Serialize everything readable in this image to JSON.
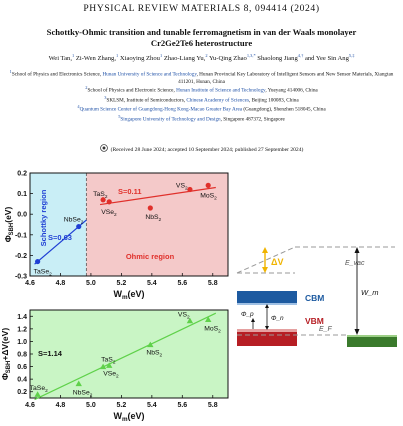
{
  "header": "PHYSICAL REVIEW MATERIALS 8, 094414 (2024)",
  "title_line1": "Schottky-Ohmic transition and tunable ferromagnetism in van der Waals monolayer",
  "title_line2": "Cr2Ge2Te6 heterostructure",
  "authors": [
    {
      "name": "Wei Tan,",
      "sup": "1"
    },
    {
      "name": "Zi-Wen Zhang,",
      "sup": "1"
    },
    {
      "name": "Xiaoying Zhou",
      "sup": "1"
    },
    {
      "name": "Zhao-Liang Yu,",
      "sup": "2"
    },
    {
      "name": "Yu-Qing Zhao",
      "sup": "1,3,*"
    },
    {
      "name": "Shaolong Jiang",
      "sup": "4,†"
    },
    {
      "name": "and Yee Sin Ang",
      "sup": "5,‡"
    }
  ],
  "affiliations": [
    {
      "num": "1",
      "pre": "School of Physics and Electronics Science, ",
      "link": "Hunan University of Science and Technology",
      "post": ", Hunan Provincial Key Laboratory of Intelligent Sensors and New Sensor Materials, Xiangtan 411201, Hunan, China"
    },
    {
      "num": "2",
      "pre": "School of Physics and Electronic Science, ",
      "link": "Hunan Institute of Science and Technology",
      "post": ", Yueyang 414006, China"
    },
    {
      "num": "3",
      "pre": "SKLSM, Institute of Semiconductors, ",
      "link": "Chinese Academy of Sciences",
      "post": ", Beijing 100083, China"
    },
    {
      "num": "4",
      "pre": "",
      "link": "Quantum Science Center of Guangdong-Hong Kong-Macao Greater Bay Area",
      "post": " (Guangdong), Shenzhen 518045, China"
    },
    {
      "num": "5",
      "pre": "",
      "link": "Singapore University of Technology and Design",
      "post": ", Singapore 487372, Singapore"
    }
  ],
  "received": "(Received 28 June 2024; accepted 10 September 2024; published 27 September 2024)",
  "chart_data": [
    {
      "type": "scatter",
      "xlabel": "W_m(eV)",
      "ylabel": "Φ_SBH(eV)",
      "xlim": [
        4.6,
        5.9
      ],
      "ylim": [
        -0.3,
        0.2
      ],
      "xticks": [
        4.6,
        4.8,
        5.0,
        5.2,
        5.4,
        5.6,
        5.8
      ],
      "yticks": [
        -0.3,
        -0.2,
        -0.1,
        0.0,
        0.1,
        0.2
      ],
      "xtick_labels": [
        "4.6",
        "4.8",
        "5.0",
        "5.2",
        "5.4",
        "5.6",
        "5.8"
      ],
      "ytick_labels": [
        "-0.3",
        "-0.2",
        "-0.1",
        "0.0",
        "0.1",
        "0.2"
      ],
      "regions": [
        {
          "label": "Schottky region",
          "x_from": 4.6,
          "x_to": 4.97,
          "color": "#c9eef6"
        },
        {
          "label": "Ohmic region",
          "x_from": 4.97,
          "x_to": 5.9,
          "color": "#f4c9c9"
        }
      ],
      "series": [
        {
          "color": "#1f3fd4",
          "slope_label": "S=0.63",
          "points": [
            {
              "label": "TaSe2",
              "x": 4.65,
              "y": -0.23
            },
            {
              "label": "NbSe2",
              "x": 4.92,
              "y": -0.06
            }
          ]
        },
        {
          "color": "#e0302b",
          "slope_label": "S=0.11",
          "points": [
            {
              "label": "TaS2",
              "x": 5.08,
              "y": 0.07
            },
            {
              "label": "VSe2",
              "x": 5.12,
              "y": 0.06
            },
            {
              "label": "NbS2",
              "x": 5.39,
              "y": 0.03
            },
            {
              "label": "VS2",
              "x": 5.65,
              "y": 0.12
            },
            {
              "label": "MoS2",
              "x": 5.77,
              "y": 0.14
            }
          ]
        }
      ]
    },
    {
      "type": "scatter",
      "xlabel": "W_m(eV)",
      "ylabel": "Φ_SBH+ΔV(eV)",
      "xlim": [
        4.6,
        5.9
      ],
      "ylim": [
        0.1,
        1.5
      ],
      "xticks": [
        4.6,
        4.8,
        5.0,
        5.2,
        5.4,
        5.6,
        5.8
      ],
      "yticks": [
        0.2,
        0.4,
        0.6,
        0.8,
        1.0,
        1.2,
        1.4
      ],
      "xtick_labels": [
        "4.6",
        "4.8",
        "5.0",
        "5.2",
        "5.4",
        "5.6",
        "5.8"
      ],
      "ytick_labels": [
        "0.2",
        "0.4",
        "0.6",
        "0.8",
        "1.0",
        "1.2",
        "1.4"
      ],
      "background": "#c9f5c5",
      "series": [
        {
          "color": "#5fd14a",
          "slope_label": "S=1.14",
          "points": [
            {
              "label": "TaSe2",
              "x": 4.65,
              "y": 0.16
            },
            {
              "label": "NbSe2",
              "x": 4.92,
              "y": 0.33
            },
            {
              "label": "TaS2",
              "x": 5.08,
              "y": 0.6
            },
            {
              "label": "VSe2",
              "x": 5.12,
              "y": 0.62
            },
            {
              "label": "NbS2",
              "x": 5.39,
              "y": 0.95
            },
            {
              "label": "VS2",
              "x": 5.65,
              "y": 1.33
            },
            {
              "label": "MoS2",
              "x": 5.77,
              "y": 1.35
            }
          ]
        }
      ]
    }
  ],
  "band_diagram": {
    "labels": {
      "dv": "ΔV",
      "evac": "E_vac",
      "wm": "W_m",
      "cbm": "CBM",
      "vbm": "VBM",
      "ef": "E_F",
      "phip": "Φ_p",
      "phin": "Φ_n"
    },
    "colors": {
      "cbm_bar": "#1d5aa0",
      "vbm_bar": "#b61e24",
      "metal_bar": "#3a7a2c",
      "dv_arrow": "#f0b400"
    }
  }
}
